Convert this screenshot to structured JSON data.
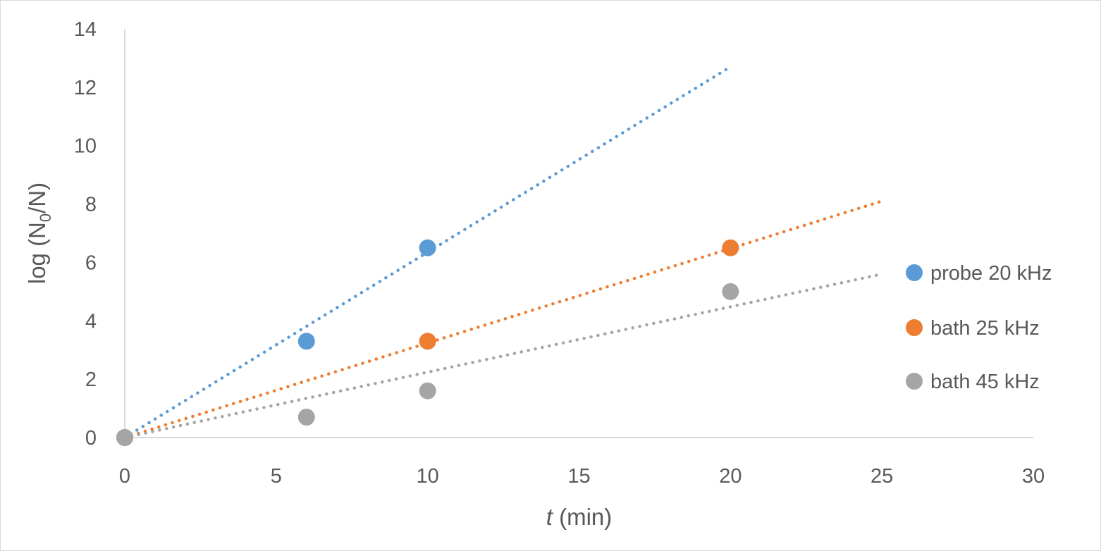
{
  "chart_data": {
    "type": "scatter",
    "xlabel": {
      "italic": "t",
      "rest": " (min)"
    },
    "ylabel": {
      "prefix": "log (N",
      "subscript": "0",
      "suffix": "/N)"
    },
    "xlim": [
      0,
      30
    ],
    "ylim": [
      0,
      14
    ],
    "xticks": [
      "0",
      "5",
      "10",
      "15",
      "20",
      "25",
      "30"
    ],
    "yticks": [
      "0",
      "2",
      "4",
      "6",
      "8",
      "10",
      "12",
      "14"
    ],
    "grid": false,
    "legend_position": "right",
    "series": [
      {
        "name": "probe 20 kHz",
        "color": "#5b9bd5",
        "points": [
          [
            0,
            0
          ],
          [
            6,
            3.3
          ],
          [
            10,
            6.5
          ]
        ],
        "trendline": {
          "type": "linear",
          "x_range": [
            0,
            20
          ],
          "y_range": [
            0,
            12.7
          ]
        }
      },
      {
        "name": "bath 25 kHz",
        "color": "#ed7d31",
        "points": [
          [
            0,
            0
          ],
          [
            10,
            3.3
          ],
          [
            20,
            6.5
          ]
        ],
        "trendline": {
          "type": "linear",
          "x_range": [
            0,
            25
          ],
          "y_range": [
            0,
            8.1
          ]
        }
      },
      {
        "name": "bath 45 kHz",
        "color": "#a5a5a5",
        "points": [
          [
            0,
            0
          ],
          [
            6,
            0.7
          ],
          [
            10,
            1.6
          ],
          [
            20,
            5.0
          ]
        ],
        "trendline": {
          "type": "linear",
          "x_range": [
            0,
            25
          ],
          "y_range": [
            0,
            5.6
          ]
        }
      }
    ]
  }
}
